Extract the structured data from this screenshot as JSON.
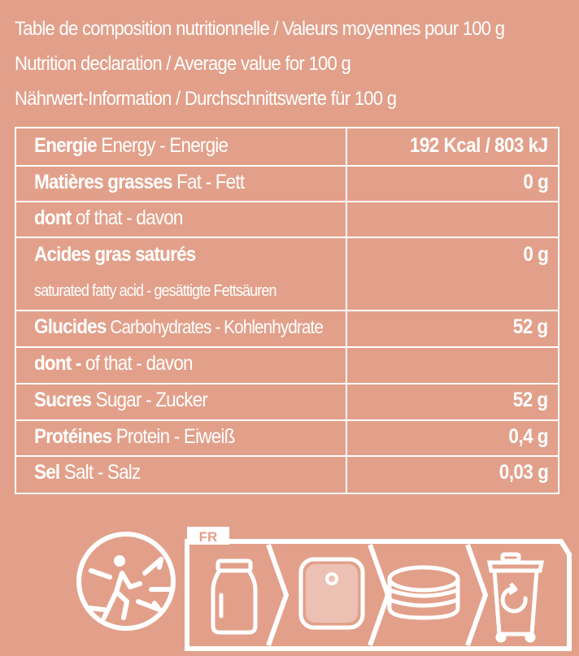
{
  "intro": {
    "line_fr": "Table de composition nutritionnelle / Valeurs moyennes pour 100 g",
    "line_en": "Nutrition declaration / Average value for 100 g",
    "line_de": "Nährwert-Information / Durchschnittswerte für 100 g"
  },
  "table": {
    "rows": [
      {
        "bold": "Energie",
        "rest": " Energy - Energie",
        "value": "192 Kcal / 803  kJ"
      },
      {
        "bold": "Matières grasses",
        "rest": " Fat - Fett",
        "value": "0 g"
      },
      {
        "bold": "dont",
        "rest": " of that - davon",
        "value": ""
      },
      {
        "bold": "Acides gras saturés",
        "rest": "",
        "sub": "saturated fatty acid - gesättigte Fettsäuren",
        "value": "0 g"
      },
      {
        "bold": "Glucides",
        "rest": " Carbohydrates - Kohlenhydrate",
        "value": "52 g"
      },
      {
        "bold": "dont -",
        "rest": " of that - davon",
        "value": ""
      },
      {
        "bold": "Sucres",
        "rest": "  Sugar - Zucker",
        "value": "52 g"
      },
      {
        "bold": "Protéines",
        "rest": " Protein - Eiweiß",
        "value": "0,4 g"
      },
      {
        "bold": "Sel",
        "rest": "  Salt - Salz",
        "value": "0,03 g"
      }
    ]
  },
  "recycling": {
    "country": "FR",
    "icons": [
      "triman-icon",
      "glass-jar-icon",
      "lid-icon",
      "capsule-icon",
      "recycling-bin-icon"
    ],
    "color": "#ffffff"
  }
}
